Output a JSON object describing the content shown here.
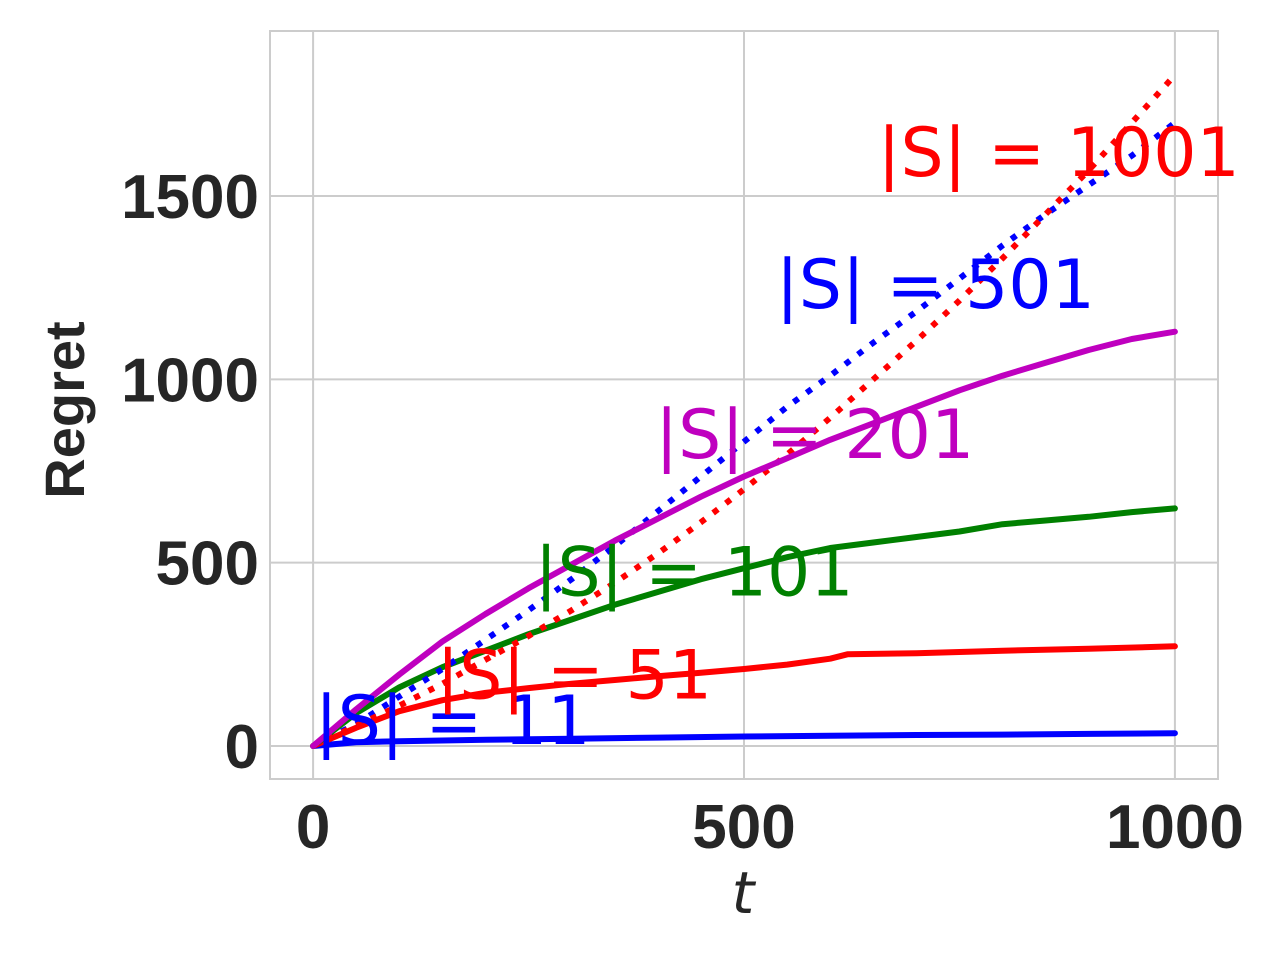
{
  "chart_data": {
    "type": "line",
    "title": "",
    "xlabel": "t",
    "ylabel": "Regret",
    "xlim": [
      -50,
      1050
    ],
    "ylim": [
      -90,
      1950
    ],
    "xticks": [
      0,
      500,
      1000
    ],
    "yticks": [
      0,
      500,
      1000,
      1500
    ],
    "xtick_labels": [
      "0",
      "500",
      "1000"
    ],
    "ytick_labels": [
      "0",
      "500",
      "1000",
      "1500"
    ],
    "grid": true,
    "legend": "none",
    "series": [
      {
        "color": "#0000ff",
        "style": "solid",
        "x": [
          0,
          50,
          100,
          200,
          300,
          400,
          500,
          600,
          700,
          800,
          900,
          1000
        ],
        "y": [
          0,
          10,
          13,
          17,
          20,
          23,
          26,
          28,
          30,
          31,
          33,
          35
        ]
      },
      {
        "color": "#ff0000",
        "style": "solid",
        "x": [
          0,
          50,
          100,
          150,
          200,
          250,
          300,
          350,
          400,
          450,
          500,
          550,
          600,
          620,
          700,
          800,
          900,
          1000
        ],
        "y": [
          0,
          50,
          95,
          125,
          145,
          158,
          170,
          180,
          190,
          200,
          210,
          222,
          238,
          250,
          253,
          260,
          265,
          272
        ]
      },
      {
        "color": "#008000",
        "style": "solid",
        "x": [
          0,
          50,
          100,
          150,
          200,
          250,
          300,
          350,
          400,
          450,
          500,
          550,
          600,
          650,
          700,
          750,
          800,
          850,
          900,
          950,
          1000
        ],
        "y": [
          0,
          90,
          160,
          215,
          260,
          305,
          345,
          385,
          420,
          455,
          485,
          515,
          540,
          555,
          570,
          585,
          605,
          615,
          625,
          638,
          648
        ]
      },
      {
        "color": "#bf00bf",
        "style": "solid",
        "x": [
          0,
          50,
          100,
          150,
          200,
          250,
          300,
          350,
          400,
          450,
          500,
          550,
          600,
          650,
          700,
          750,
          800,
          850,
          900,
          950,
          1000
        ],
        "y": [
          0,
          100,
          195,
          285,
          360,
          430,
          495,
          560,
          620,
          680,
          735,
          785,
          835,
          880,
          925,
          970,
          1010,
          1045,
          1080,
          1110,
          1130
        ]
      },
      {
        "color": "#0000ff",
        "style": "dotted",
        "x": [
          0,
          50,
          100,
          150,
          200,
          250,
          300,
          350,
          400,
          450,
          500,
          550,
          600,
          650,
          700,
          750,
          800,
          850,
          900,
          950,
          1000
        ],
        "y": [
          0,
          60,
          135,
          210,
          290,
          370,
          455,
          545,
          640,
          735,
          830,
          925,
          1010,
          1100,
          1185,
          1275,
          1365,
          1450,
          1530,
          1610,
          1700
        ]
      },
      {
        "color": "#ff0000",
        "style": "dotted",
        "x": [
          0,
          50,
          100,
          150,
          200,
          250,
          300,
          350,
          400,
          450,
          500,
          550,
          600,
          650,
          700,
          750,
          800,
          850,
          900,
          950,
          1000
        ],
        "y": [
          0,
          55,
          110,
          170,
          235,
          300,
          370,
          445,
          525,
          610,
          700,
          795,
          895,
          1000,
          1105,
          1215,
          1330,
          1450,
          1570,
          1700,
          1830
        ]
      }
    ],
    "annotations": [
      {
        "text": "|S| = 11",
        "color": "#0000ff",
        "x": 2,
        "y": 5
      },
      {
        "text": "|S| = 51",
        "color": "#ff0000",
        "x": 143,
        "y": 130
      },
      {
        "text": "|S| = 101",
        "color": "#008000",
        "x": 257,
        "y": 410
      },
      {
        "text": "|S| = 201",
        "color": "#bf00bf",
        "x": 397,
        "y": 785
      },
      {
        "text": "|S| = 501",
        "color": "#0000ff",
        "x": 537,
        "y": 1195
      },
      {
        "text": "|S| = 1001",
        "color": "#ff0000",
        "x": 655,
        "y": 1555
      }
    ]
  }
}
